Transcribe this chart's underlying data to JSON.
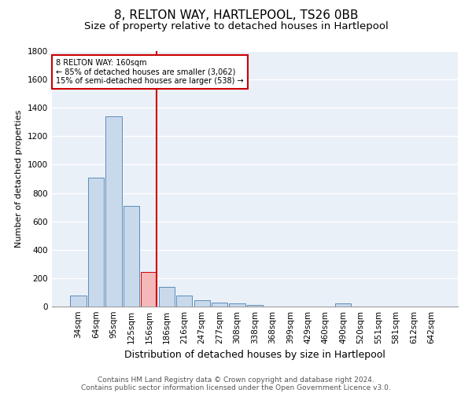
{
  "title1": "8, RELTON WAY, HARTLEPOOL, TS26 0BB",
  "title2": "Size of property relative to detached houses in Hartlepool",
  "xlabel": "Distribution of detached houses by size in Hartlepool",
  "ylabel": "Number of detached properties",
  "categories": [
    "34sqm",
    "64sqm",
    "95sqm",
    "125sqm",
    "156sqm",
    "186sqm",
    "216sqm",
    "247sqm",
    "277sqm",
    "308sqm",
    "338sqm",
    "368sqm",
    "399sqm",
    "429sqm",
    "460sqm",
    "490sqm",
    "520sqm",
    "551sqm",
    "581sqm",
    "612sqm",
    "642sqm"
  ],
  "values": [
    80,
    910,
    1340,
    710,
    245,
    140,
    75,
    45,
    25,
    20,
    10,
    0,
    0,
    0,
    0,
    20,
    0,
    0,
    0,
    0,
    0
  ],
  "bar_color": "#c9d9ec",
  "bar_edge_color": "#5b8db8",
  "highlight_bar_index": 4,
  "highlight_bar_color": "#f4b8b8",
  "highlight_bar_edge_color": "#cc0000",
  "vline_color": "#cc0000",
  "ylim": [
    0,
    1800
  ],
  "yticks": [
    0,
    200,
    400,
    600,
    800,
    1000,
    1200,
    1400,
    1600,
    1800
  ],
  "annotation_text": "8 RELTON WAY: 160sqm\n← 85% of detached houses are smaller (3,062)\n15% of semi-detached houses are larger (538) →",
  "annotation_box_color": "#ffffff",
  "annotation_box_edge_color": "#cc0000",
  "footnote1": "Contains HM Land Registry data © Crown copyright and database right 2024.",
  "footnote2": "Contains public sector information licensed under the Open Government Licence v3.0.",
  "bg_color": "#eaf0f8",
  "grid_color": "#ffffff",
  "title1_fontsize": 11,
  "title2_fontsize": 9.5,
  "xlabel_fontsize": 9,
  "ylabel_fontsize": 8,
  "tick_fontsize": 7.5,
  "footnote_fontsize": 6.5
}
